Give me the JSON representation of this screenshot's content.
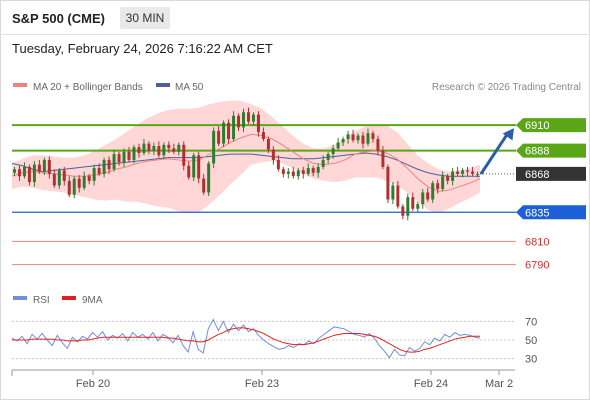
{
  "header": {
    "instrument": "S&P 500 (CME)",
    "timeframe": "30 MIN"
  },
  "datetime": "Tuesday, February 24, 2026 7:16:22 AM CET",
  "legend": {
    "ma20": "MA 20 + Bollinger Bands",
    "ma50": "MA 50",
    "credit": "Research © 2026 Trading Central"
  },
  "rsi_legend": {
    "rsi": "RSI",
    "ma": "9MA"
  },
  "colors": {
    "up_candle": "#2e7d2e",
    "down_candle": "#b03030",
    "ma20_band": "#ffc9c9",
    "ma20_line": "#f08080",
    "ma50_line": "#4b5f9e",
    "resistance": "#5aa616",
    "pivot": "#1d5fd6",
    "support": "#f08080",
    "last_price_tag": "#333333",
    "rsi_line": "#6f8fd8",
    "rsi_ma_line": "#e02020",
    "arrow": "#2b5da8"
  },
  "chart_data": [
    {
      "type": "candlestick",
      "title": "S&P 500 (CME)",
      "timeframe": "30 MIN",
      "x_ticks": [
        "Feb 20",
        "Feb 23",
        "Feb 24",
        "Mar 2"
      ],
      "ylim": [
        6775,
        6935
      ],
      "levels": [
        {
          "label": "6910",
          "value": 6910,
          "kind": "resistance"
        },
        {
          "label": "6888",
          "value": 6888,
          "kind": "resistance"
        },
        {
          "label": "6868",
          "value": 6868,
          "kind": "last"
        },
        {
          "label": "6835",
          "value": 6835,
          "kind": "pivot"
        },
        {
          "label": "6810",
          "value": 6810,
          "kind": "support"
        },
        {
          "label": "6790",
          "value": 6790,
          "kind": "support"
        }
      ],
      "closes": [
        6872,
        6866,
        6874,
        6861,
        6876,
        6870,
        6880,
        6868,
        6858,
        6871,
        6862,
        6850,
        6864,
        6856,
        6866,
        6862,
        6873,
        6868,
        6880,
        6872,
        6885,
        6878,
        6887,
        6880,
        6891,
        6886,
        6894,
        6888,
        6892,
        6884,
        6893,
        6890,
        6887,
        6893,
        6875,
        6865,
        6884,
        6864,
        6852,
        6877,
        6905,
        6894,
        6912,
        6898,
        6918,
        6908,
        6921,
        6913,
        6919,
        6904,
        6898,
        6889,
        6880,
        6872,
        6868,
        6870,
        6866,
        6871,
        6868,
        6873,
        6869,
        6874,
        6880,
        6885,
        6890,
        6895,
        6898,
        6902,
        6897,
        6901,
        6894,
        6903,
        6898,
        6888,
        6874,
        6846,
        6858,
        6840,
        6832,
        6848,
        6838,
        6842,
        6852,
        6846,
        6860,
        6855,
        6866,
        6862,
        6870,
        6868,
        6871,
        6870,
        6868,
        6868
      ],
      "ma20": [
        6866,
        6869,
        6870,
        6869,
        6868,
        6867,
        6866,
        6866,
        6867,
        6869,
        6872,
        6874,
        6877,
        6879,
        6880,
        6881,
        6880,
        6879,
        6880,
        6885,
        6890,
        6895,
        6899,
        6902,
        6901,
        6898,
        6893,
        6887,
        6881,
        6877,
        6876,
        6877,
        6880,
        6885,
        6887,
        6888,
        6886,
        6881,
        6873,
        6864,
        6857,
        6853,
        6854,
        6857,
        6860,
        6864
      ],
      "ma50": [
        6877,
        6875,
        6872,
        6870,
        6871,
        6872,
        6873,
        6874,
        6875,
        6876,
        6877,
        6878,
        6879,
        6880,
        6881,
        6882,
        6882,
        6882,
        6882,
        6883,
        6884,
        6885,
        6885,
        6885,
        6884,
        6883,
        6882,
        6881,
        6881,
        6881,
        6882,
        6883,
        6884,
        6885,
        6886,
        6885,
        6883,
        6880,
        6876,
        6872,
        6869,
        6867,
        6866,
        6866,
        6866,
        6866
      ],
      "bb_upper": [
        6877,
        6881,
        6884,
        6884,
        6883,
        6882,
        6882,
        6884,
        6888,
        6893,
        6898,
        6904,
        6910,
        6916,
        6920,
        6923,
        6924,
        6924,
        6925,
        6928,
        6930,
        6931,
        6931,
        6928,
        6924,
        6917,
        6909,
        6901,
        6894,
        6890,
        6890,
        6893,
        6898,
        6905,
        6909,
        6911,
        6910,
        6904,
        6894,
        6884,
        6877,
        6872,
        6870,
        6871,
        6873,
        6876
      ],
      "bb_lower": [
        6855,
        6857,
        6856,
        6854,
        6853,
        6852,
        6850,
        6848,
        6846,
        6845,
        6846,
        6844,
        6844,
        6842,
        6840,
        6839,
        6836,
        6834,
        6835,
        6842,
        6850,
        6859,
        6867,
        6876,
        6878,
        6879,
        6877,
        6873,
        6868,
        6864,
        6862,
        6861,
        6862,
        6865,
        6865,
        6865,
        6862,
        6858,
        6852,
        6844,
        6837,
        6834,
        6838,
        6843,
        6847,
        6852
      ],
      "forecast_arrow": {
        "from": 6868,
        "to": 6910
      }
    },
    {
      "type": "line",
      "series": [
        {
          "name": "RSI",
          "values": [
            52,
            49,
            54,
            46,
            56,
            51,
            57,
            50,
            44,
            55,
            47,
            41,
            53,
            48,
            54,
            51,
            58,
            53,
            59,
            50,
            55,
            52,
            57,
            49,
            58,
            53,
            56,
            51,
            58,
            49,
            56,
            53,
            47,
            55,
            44,
            37,
            59,
            40,
            36,
            62,
            72,
            60,
            70,
            58,
            67,
            60,
            66,
            59,
            62,
            55,
            50,
            46,
            43,
            40,
            41,
            44,
            42,
            46,
            45,
            49,
            46,
            52,
            56,
            60,
            64,
            63,
            62,
            59,
            56,
            55,
            53,
            57,
            52,
            44,
            38,
            31,
            40,
            34,
            33,
            42,
            38,
            41,
            48,
            45,
            52,
            49,
            56,
            53,
            58,
            55,
            56,
            55,
            53,
            52
          ]
        },
        {
          "name": "9MA",
          "values": [
            50,
            50,
            50,
            50,
            51,
            51,
            51,
            51,
            51,
            50,
            50,
            49,
            49,
            49,
            50,
            50,
            51,
            52,
            53,
            53,
            53,
            53,
            53,
            53,
            53,
            53,
            53,
            53,
            53,
            53,
            53,
            52,
            52,
            51,
            50,
            49,
            49,
            48,
            48,
            50,
            53,
            56,
            58,
            61,
            62,
            63,
            63,
            62,
            61,
            59,
            57,
            54,
            51,
            49,
            47,
            46,
            45,
            45,
            45,
            46,
            47,
            49,
            51,
            53,
            55,
            56,
            57,
            57,
            57,
            57,
            56,
            55,
            54,
            52,
            49,
            46,
            43,
            40,
            38,
            37,
            37,
            38,
            40,
            41,
            43,
            45,
            47,
            49,
            51,
            52,
            53,
            54,
            54,
            54
          ]
        }
      ],
      "y_ticks": [
        70,
        50,
        30
      ],
      "ylim": [
        20,
        80
      ]
    }
  ]
}
